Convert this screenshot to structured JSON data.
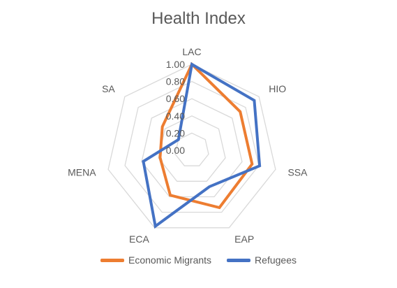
{
  "chart_data": {
    "type": "radar",
    "title": "Health Index",
    "categories": [
      "LAC",
      "HIO",
      "SSA",
      "EAP",
      "ECA",
      "MENA",
      "SA"
    ],
    "rlim": [
      0,
      1
    ],
    "ticks": [
      "0.00",
      "0.20",
      "0.40",
      "0.60",
      "0.80",
      "1.00"
    ],
    "series": [
      {
        "name": "Economic Migrants",
        "color": "#ED7D31",
        "values": [
          1.0,
          0.72,
          0.72,
          0.74,
          0.58,
          0.38,
          0.44
        ]
      },
      {
        "name": "Refugees",
        "color": "#4472C4",
        "values": [
          1.0,
          0.93,
          0.81,
          0.47,
          0.98,
          0.58,
          0.2
        ]
      }
    ],
    "grid": true,
    "legend_position": "bottom"
  }
}
